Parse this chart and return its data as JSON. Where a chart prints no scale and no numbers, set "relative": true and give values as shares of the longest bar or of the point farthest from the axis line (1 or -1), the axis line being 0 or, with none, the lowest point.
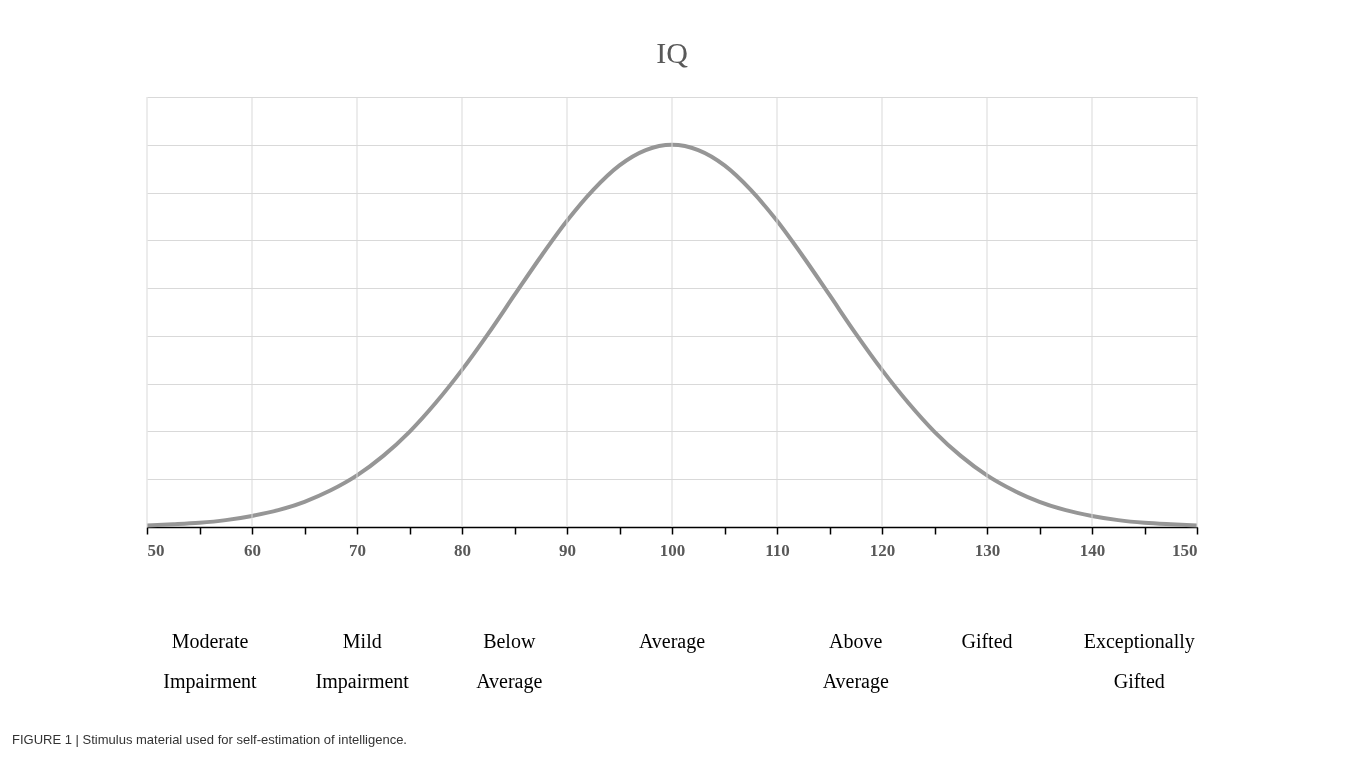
{
  "chart_data": {
    "type": "line",
    "title": "IQ",
    "relative": true,
    "x": [
      50,
      52.5,
      55,
      57.5,
      60,
      62.5,
      65,
      67.5,
      70,
      72.5,
      75,
      77.5,
      80,
      82.5,
      85,
      87.5,
      90,
      92.5,
      95,
      97.5,
      100,
      102.5,
      105,
      107.5,
      110,
      112.5,
      115,
      117.5,
      120,
      122.5,
      125,
      127.5,
      130,
      132.5,
      135,
      137.5,
      140,
      142.5,
      145,
      147.5,
      150
    ],
    "series": [
      {
        "color": "#969696",
        "values": [
          0.004,
          0.007,
          0.011,
          0.018,
          0.029,
          0.044,
          0.066,
          0.096,
          0.135,
          0.186,
          0.249,
          0.325,
          0.411,
          0.506,
          0.607,
          0.707,
          0.801,
          0.882,
          0.946,
          0.986,
          1,
          0.986,
          0.946,
          0.882,
          0.801,
          0.707,
          0.607,
          0.506,
          0.411,
          0.325,
          0.249,
          0.186,
          0.135,
          0.096,
          0.066,
          0.044,
          0.029,
          0.018,
          0.011,
          0.007,
          0.004
        ]
      }
    ],
    "xlim": [
      50,
      150
    ],
    "xticks": [
      50,
      {
        "value": 55,
        "label": null
      },
      60,
      {
        "value": 65,
        "label": null
      },
      70,
      {
        "value": 75,
        "label": null
      },
      80,
      {
        "value": 85,
        "label": null
      },
      90,
      {
        "value": 95,
        "label": null
      },
      100,
      {
        "value": 105,
        "label": null
      },
      110,
      {
        "value": 115,
        "label": null
      },
      120,
      {
        "value": 125,
        "label": null
      },
      130,
      {
        "value": 135,
        "label": null
      },
      140,
      {
        "value": 145,
        "label": null
      },
      150
    ],
    "grid": true,
    "marker": "none",
    "line_style": "solid",
    "legend": false,
    "annotations": [
      "Moderate Impairment",
      "Mild Impairment",
      "Below Average",
      "Average",
      "Above Average",
      "Gifted",
      "Exceptionally Gifted",
      "FIGURE 1 | Stimulus material used for self-estimation of intelligence."
    ]
  }
}
